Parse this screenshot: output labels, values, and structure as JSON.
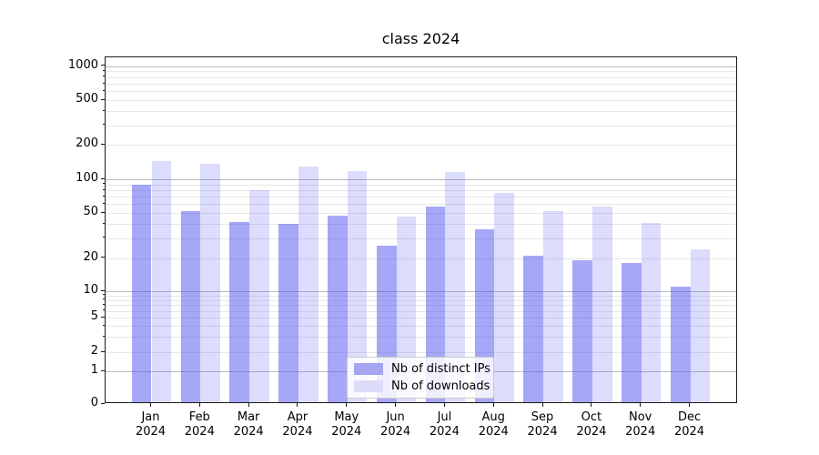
{
  "figure": {
    "background": "#ffffff"
  },
  "chart_data": {
    "type": "bar",
    "title": "class 2024",
    "categories": [
      "Jan 2024",
      "Feb 2024",
      "Mar 2024",
      "Apr 2024",
      "May 2024",
      "Jun 2024",
      "Jul 2024",
      "Aug 2024",
      "Sep 2024",
      "Oct 2024",
      "Nov 2024",
      "Dec 2024"
    ],
    "x_tick_months": [
      "Jan",
      "Feb",
      "Mar",
      "Apr",
      "May",
      "Jun",
      "Jul",
      "Aug",
      "Sep",
      "Oct",
      "Nov",
      "Dec"
    ],
    "x_tick_year": "2024",
    "series": [
      {
        "name": "Nb of distinct IPs",
        "bar_color": "rgba(80,80,240,0.5)",
        "swatch_color": "#a5a5f1",
        "values": [
          90,
          52,
          42,
          40,
          48,
          26,
          57,
          36,
          21,
          19,
          18,
          11
        ]
      },
      {
        "name": "Nb of downloads",
        "bar_color": "rgba(80,80,240,0.2)",
        "swatch_color": "#dcdcf8",
        "values": [
          145,
          137,
          80,
          130,
          117,
          47,
          116,
          75,
          52,
          57,
          41,
          24
        ]
      }
    ],
    "yscale": "symlog",
    "ylim": [
      0,
      1300
    ],
    "y_tick_values": [
      0,
      1,
      2,
      5,
      10,
      20,
      50,
      100,
      200,
      500,
      1000
    ],
    "y_tick_labels": [
      "0",
      "1",
      "2",
      "5",
      "10",
      "20",
      "50",
      "100",
      "200",
      "500",
      "1000"
    ],
    "grid": "both",
    "legend_position": "lower center inside",
    "colors": {
      "grid_major": "#bbbbbb",
      "grid_minor": "#e7e7e7",
      "axis": "#1a1a1a",
      "text": "#000000"
    }
  }
}
